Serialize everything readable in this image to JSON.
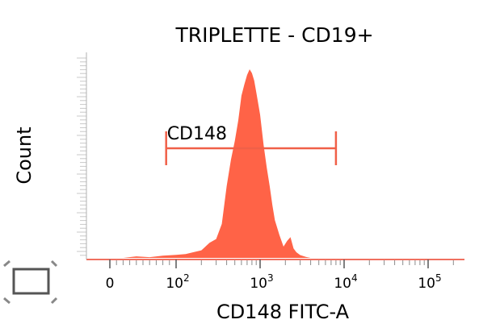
{
  "chart_data": {
    "type": "area",
    "title": "TRIPLETTE - CD19+",
    "xlabel": "CD148 FITC-A",
    "ylabel": "Count",
    "x_scale": "biexponential",
    "x_ticks": [
      {
        "value": 0,
        "base": "0",
        "exp": ""
      },
      {
        "value": 100,
        "base": "10",
        "exp": "2"
      },
      {
        "value": 1000,
        "base": "10",
        "exp": "3"
      },
      {
        "value": 10000,
        "base": "10",
        "exp": "4"
      },
      {
        "value": 100000,
        "base": "10",
        "exp": "5"
      }
    ],
    "xlim": [
      -30,
      250000
    ],
    "ylim": [
      0,
      100
    ],
    "series": [
      {
        "color": "#ff6347",
        "x": [
          20,
          40,
          60,
          80,
          100,
          130,
          160,
          200,
          250,
          300,
          350,
          400,
          450,
          500,
          550,
          600,
          650,
          700,
          750,
          800,
          850,
          900,
          1000,
          1100,
          1200,
          1300,
          1400,
          1500,
          1700,
          1900,
          2100,
          2300,
          2500,
          2700,
          3000,
          3500,
          4000
        ],
        "y": [
          0,
          0.8,
          0.4,
          1.2,
          1.6,
          2,
          3,
          4,
          8,
          10,
          18,
          38,
          52,
          62,
          73,
          86,
          92,
          97,
          100,
          98,
          94,
          88,
          76,
          60,
          48,
          38,
          28,
          20,
          12,
          6,
          9,
          11,
          5,
          3,
          1.5,
          0.5,
          0
        ]
      }
    ],
    "gate": {
      "label": "CD148",
      "x_start": 85,
      "x_end": 8000,
      "color": "#f06048"
    },
    "grid": false
  },
  "icons": {
    "corner_marker": "expand-frame-icon"
  }
}
